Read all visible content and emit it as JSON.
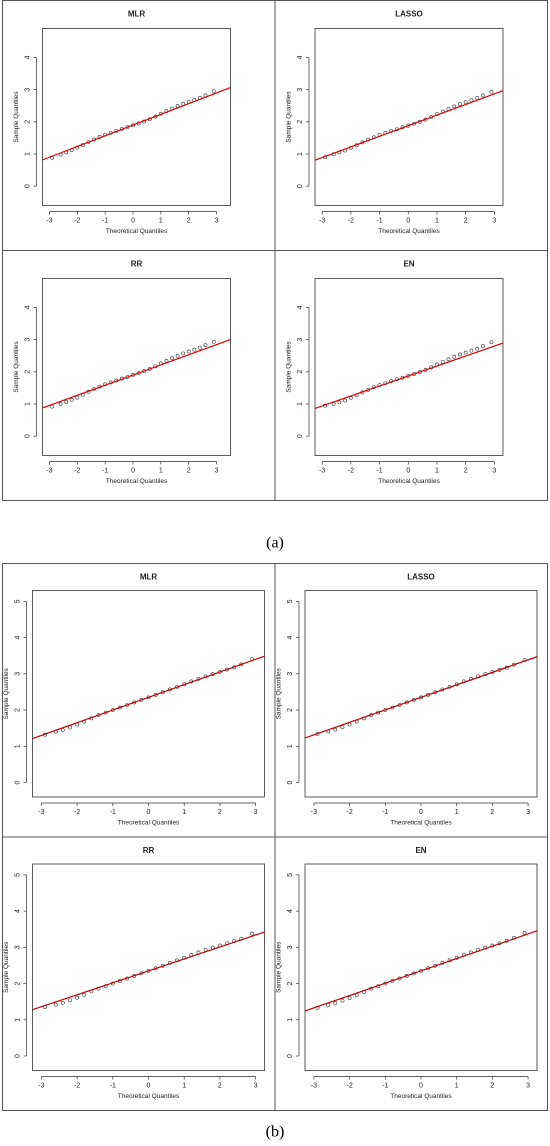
{
  "captions": [
    "(a)",
    "(b)"
  ],
  "chart_data": [
    {
      "type": "scatter",
      "title": "MLR",
      "x_label": "Theoretical Quantiles",
      "y_label": "Sample Quantiles",
      "xlim": [
        -3.25,
        3.5
      ],
      "ylim": [
        -0.6,
        4.9
      ],
      "xticks": [
        -3,
        -2,
        -1,
        0,
        1,
        2,
        3
      ],
      "yticks": [
        0,
        1,
        2,
        3,
        4
      ],
      "x": [
        -2.9,
        -2.6,
        -2.4,
        -2.2,
        -2.0,
        -1.8,
        -1.6,
        -1.4,
        -1.2,
        -1.0,
        -0.8,
        -0.6,
        -0.4,
        -0.2,
        0,
        0.2,
        0.4,
        0.6,
        0.8,
        1.0,
        1.2,
        1.4,
        1.6,
        1.8,
        2.0,
        2.2,
        2.4,
        2.6,
        2.9
      ],
      "y": [
        0.88,
        0.98,
        1.05,
        1.12,
        1.2,
        1.28,
        1.37,
        1.45,
        1.53,
        1.6,
        1.66,
        1.72,
        1.78,
        1.84,
        1.89,
        1.95,
        2.01,
        2.08,
        2.16,
        2.25,
        2.33,
        2.41,
        2.49,
        2.56,
        2.62,
        2.68,
        2.74,
        2.82,
        2.95
      ],
      "point_color": "#333333",
      "abline": {
        "intercept": 1.9,
        "slope": 0.333,
        "color": "#e00000"
      }
    },
    {
      "type": "scatter",
      "title": "LASSO",
      "x_label": "Theoretical Quantiles",
      "y_label": "Sample Quantiles",
      "xlim": [
        -3.25,
        3.3
      ],
      "ylim": [
        -0.6,
        4.9
      ],
      "xticks": [
        -3,
        -2,
        -1,
        0,
        1,
        2,
        3
      ],
      "yticks": [
        0,
        1,
        2,
        3,
        4
      ],
      "x": [
        -2.9,
        -2.6,
        -2.4,
        -2.2,
        -2.0,
        -1.8,
        -1.6,
        -1.4,
        -1.2,
        -1.0,
        -0.8,
        -0.6,
        -0.4,
        -0.2,
        0,
        0.2,
        0.4,
        0.6,
        0.8,
        1.0,
        1.2,
        1.4,
        1.6,
        1.8,
        2.0,
        2.2,
        2.4,
        2.6,
        2.9
      ],
      "y": [
        0.9,
        0.99,
        1.05,
        1.11,
        1.19,
        1.27,
        1.36,
        1.45,
        1.52,
        1.59,
        1.66,
        1.72,
        1.77,
        1.83,
        1.88,
        1.94,
        2.0,
        2.07,
        2.15,
        2.24,
        2.32,
        2.4,
        2.48,
        2.55,
        2.61,
        2.67,
        2.74,
        2.82,
        2.93
      ],
      "point_color": "#333333",
      "abline": {
        "intercept": 1.88,
        "slope": 0.33,
        "color": "#e00000"
      }
    },
    {
      "type": "scatter",
      "title": "RR",
      "x_label": "Theoretical Quantiles",
      "y_label": "Sample Quantiles",
      "xlim": [
        -3.25,
        3.5
      ],
      "ylim": [
        -0.6,
        4.9
      ],
      "xticks": [
        -3,
        -2,
        -1,
        0,
        1,
        2,
        3
      ],
      "yticks": [
        0,
        1,
        2,
        3,
        4
      ],
      "x": [
        -2.9,
        -2.6,
        -2.4,
        -2.2,
        -2.0,
        -1.8,
        -1.6,
        -1.4,
        -1.2,
        -1.0,
        -0.8,
        -0.6,
        -0.4,
        -0.2,
        0,
        0.2,
        0.4,
        0.6,
        0.8,
        1.0,
        1.2,
        1.4,
        1.6,
        1.8,
        2.0,
        2.2,
        2.4,
        2.6,
        2.9
      ],
      "y": [
        0.92,
        1.0,
        1.06,
        1.13,
        1.2,
        1.29,
        1.38,
        1.46,
        1.54,
        1.61,
        1.67,
        1.73,
        1.79,
        1.84,
        1.9,
        1.96,
        2.02,
        2.09,
        2.17,
        2.26,
        2.34,
        2.42,
        2.5,
        2.57,
        2.63,
        2.69,
        2.75,
        2.83,
        2.93
      ],
      "point_color": "#333333",
      "abline": {
        "intercept": 1.9,
        "slope": 0.315,
        "color": "#e00000"
      }
    },
    {
      "type": "scatter",
      "title": "EN",
      "x_label": "Theoretical Quantiles",
      "y_label": "Sample Quantiles",
      "xlim": [
        -3.25,
        3.3
      ],
      "ylim": [
        -0.6,
        4.9
      ],
      "xticks": [
        -3,
        -2,
        -1,
        0,
        1,
        2,
        3
      ],
      "yticks": [
        0,
        1,
        2,
        3,
        4
      ],
      "x": [
        -2.9,
        -2.6,
        -2.4,
        -2.2,
        -2.0,
        -1.8,
        -1.6,
        -1.4,
        -1.2,
        -1.0,
        -0.8,
        -0.6,
        -0.4,
        -0.2,
        0,
        0.2,
        0.4,
        0.6,
        0.8,
        1.0,
        1.2,
        1.4,
        1.6,
        1.8,
        2.0,
        2.2,
        2.4,
        2.6,
        2.9
      ],
      "y": [
        0.95,
        1.0,
        1.05,
        1.11,
        1.19,
        1.27,
        1.36,
        1.44,
        1.52,
        1.59,
        1.65,
        1.71,
        1.77,
        1.82,
        1.87,
        1.93,
        1.99,
        2.06,
        2.14,
        2.23,
        2.31,
        2.39,
        2.47,
        2.54,
        2.6,
        2.66,
        2.72,
        2.8,
        2.92
      ],
      "point_color": "#333333",
      "abline": {
        "intercept": 1.87,
        "slope": 0.31,
        "color": "#e00000"
      }
    },
    {
      "type": "scatter",
      "title": "MLR",
      "x_label": "Theoretical Quantiles",
      "y_label": "Sample Quantiles",
      "xlim": [
        -3.25,
        3.25
      ],
      "ylim": [
        -0.4,
        5.3
      ],
      "xticks": [
        -3,
        -2,
        -1,
        0,
        1,
        2,
        3
      ],
      "yticks": [
        0,
        1,
        2,
        3,
        4,
        5
      ],
      "x": [
        -2.9,
        -2.6,
        -2.4,
        -2.2,
        -2.0,
        -1.8,
        -1.6,
        -1.4,
        -1.2,
        -1.0,
        -0.8,
        -0.6,
        -0.4,
        -0.2,
        0,
        0.2,
        0.4,
        0.6,
        0.8,
        1.0,
        1.2,
        1.4,
        1.6,
        1.8,
        2.0,
        2.2,
        2.4,
        2.6,
        2.9
      ],
      "y": [
        1.32,
        1.4,
        1.45,
        1.52,
        1.6,
        1.68,
        1.77,
        1.86,
        1.93,
        2.0,
        2.07,
        2.14,
        2.21,
        2.28,
        2.35,
        2.42,
        2.49,
        2.57,
        2.64,
        2.71,
        2.79,
        2.86,
        2.93,
        2.99,
        3.05,
        3.12,
        3.18,
        3.26,
        3.4
      ],
      "point_color": "#333333",
      "abline": {
        "intercept": 2.35,
        "slope": 0.35,
        "color": "#c00000"
      }
    },
    {
      "type": "scatter",
      "title": "LASSO",
      "x_label": "Theoretical Quantiles",
      "y_label": "Sample Quantiles",
      "xlim": [
        -3.25,
        3.25
      ],
      "ylim": [
        -0.4,
        5.3
      ],
      "xticks": [
        -3,
        -2,
        -1,
        0,
        1,
        2,
        3
      ],
      "yticks": [
        0,
        1,
        2,
        3,
        4,
        5
      ],
      "x": [
        -2.9,
        -2.6,
        -2.4,
        -2.2,
        -2.0,
        -1.8,
        -1.6,
        -1.4,
        -1.2,
        -1.0,
        -0.8,
        -0.6,
        -0.4,
        -0.2,
        0,
        0.2,
        0.4,
        0.6,
        0.8,
        1.0,
        1.2,
        1.4,
        1.6,
        1.8,
        2.0,
        2.2,
        2.4,
        2.6,
        2.9
      ],
      "y": [
        1.34,
        1.41,
        1.46,
        1.53,
        1.6,
        1.68,
        1.77,
        1.86,
        1.93,
        2.0,
        2.07,
        2.14,
        2.21,
        2.28,
        2.35,
        2.42,
        2.49,
        2.57,
        2.64,
        2.71,
        2.79,
        2.86,
        2.93,
        2.99,
        3.05,
        3.11,
        3.17,
        3.25,
        3.38
      ],
      "point_color": "#333333",
      "abline": {
        "intercept": 2.35,
        "slope": 0.345,
        "color": "#c00000"
      }
    },
    {
      "type": "scatter",
      "title": "RR",
      "x_label": "Theoretical Quantiles",
      "y_label": "Sample Quantiles",
      "xlim": [
        -3.25,
        3.25
      ],
      "ylim": [
        -0.4,
        5.3
      ],
      "xticks": [
        -3,
        -2,
        -1,
        0,
        1,
        2,
        3
      ],
      "yticks": [
        0,
        1,
        2,
        3,
        4,
        5
      ],
      "x": [
        -2.9,
        -2.6,
        -2.4,
        -2.2,
        -2.0,
        -1.8,
        -1.6,
        -1.4,
        -1.2,
        -1.0,
        -0.8,
        -0.6,
        -0.4,
        -0.2,
        0,
        0.2,
        0.4,
        0.6,
        0.8,
        1.0,
        1.2,
        1.4,
        1.6,
        1.8,
        2.0,
        2.2,
        2.4,
        2.6,
        2.9
      ],
      "y": [
        1.35,
        1.42,
        1.47,
        1.54,
        1.61,
        1.69,
        1.78,
        1.86,
        1.93,
        2.0,
        2.07,
        2.14,
        2.21,
        2.28,
        2.35,
        2.42,
        2.49,
        2.57,
        2.64,
        2.71,
        2.79,
        2.86,
        2.93,
        2.99,
        3.05,
        3.11,
        3.17,
        3.24,
        3.38
      ],
      "point_color": "#333333",
      "abline": {
        "intercept": 2.35,
        "slope": 0.33,
        "color": "#c00000"
      }
    },
    {
      "type": "scatter",
      "title": "EN",
      "x_label": "Theoretical Quantiles",
      "y_label": "Sample Quantiles",
      "xlim": [
        -3.25,
        3.25
      ],
      "ylim": [
        -0.4,
        5.3
      ],
      "xticks": [
        -3,
        -2,
        -1,
        0,
        1,
        2,
        3
      ],
      "yticks": [
        0,
        1,
        2,
        3,
        4,
        5
      ],
      "x": [
        -2.9,
        -2.6,
        -2.4,
        -2.2,
        -2.0,
        -1.8,
        -1.6,
        -1.4,
        -1.2,
        -1.0,
        -0.8,
        -0.6,
        -0.4,
        -0.2,
        0,
        0.2,
        0.4,
        0.6,
        0.8,
        1.0,
        1.2,
        1.4,
        1.6,
        1.8,
        2.0,
        2.2,
        2.4,
        2.6,
        2.9
      ],
      "y": [
        1.33,
        1.41,
        1.46,
        1.53,
        1.6,
        1.68,
        1.77,
        1.86,
        1.93,
        2.0,
        2.07,
        2.14,
        2.21,
        2.28,
        2.35,
        2.42,
        2.49,
        2.57,
        2.64,
        2.71,
        2.79,
        2.86,
        2.93,
        2.99,
        3.05,
        3.11,
        3.18,
        3.26,
        3.4
      ],
      "point_color": "#333333",
      "abline": {
        "intercept": 2.35,
        "slope": 0.34,
        "color": "#c00000"
      }
    }
  ]
}
